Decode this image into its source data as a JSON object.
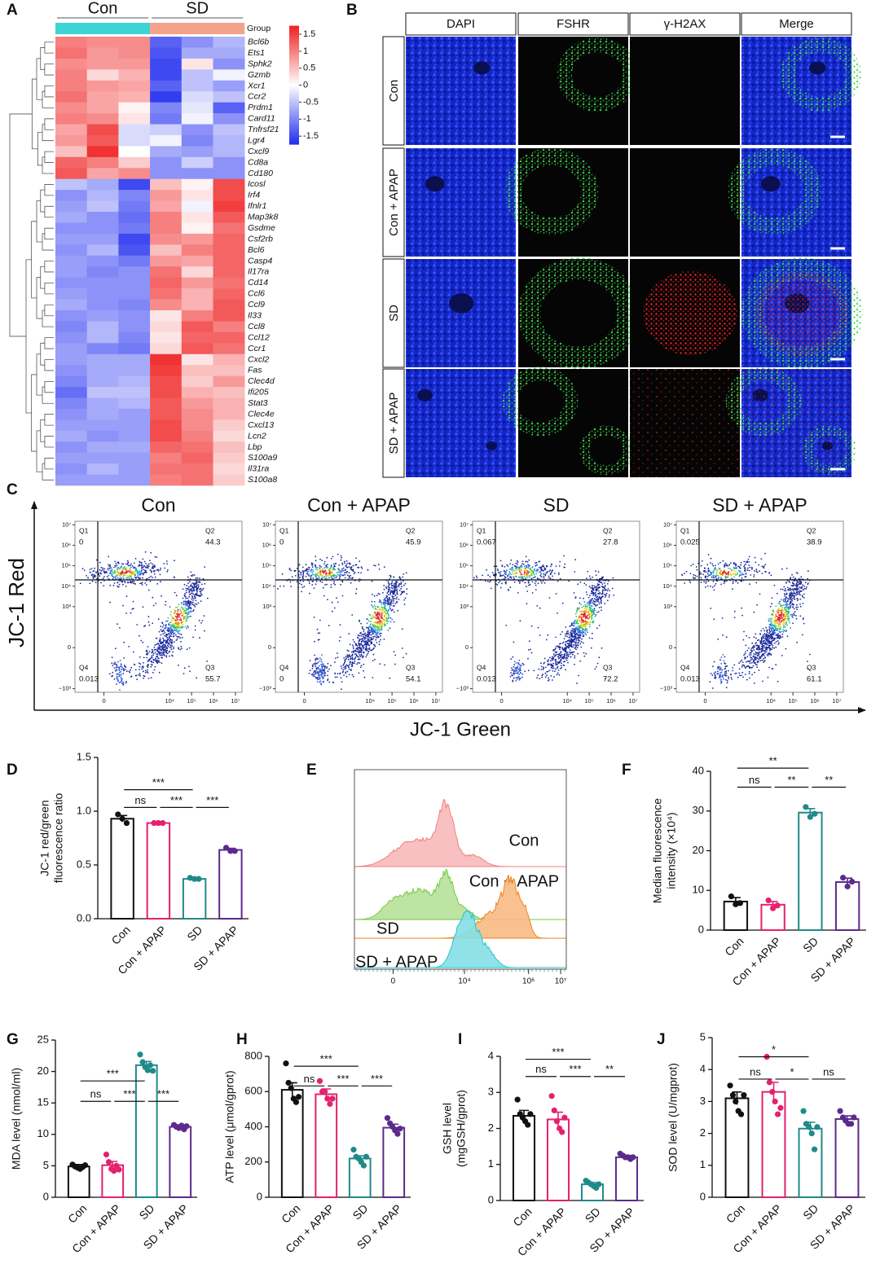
{
  "chart_data": [
    {
      "panel": "A",
      "type": "heatmap",
      "groups": [
        {
          "name": "Con",
          "color": "#3fd4d4"
        },
        {
          "name": "SD",
          "color": "#f4a28c"
        }
      ],
      "group_label": "Group",
      "rows": [
        "Bcl6b",
        "Ets1",
        "Sphk2",
        "Gzmb",
        "Xcr1",
        "Ccr2",
        "Prdm1",
        "Card11",
        "Tnfrsf21",
        "Lgr4",
        "Cxcl9",
        "Cd8a",
        "Cd180",
        "Icosl",
        "Irf4",
        "Ifnlr1",
        "Map3k8",
        "Gsdme",
        "Csf2rb",
        "Bcl6",
        "Casp4",
        "Il17ra",
        "Cd14",
        "Ccl6",
        "Ccl9",
        "Il33",
        "Ccl8",
        "Ccl12",
        "Ccr1",
        "Cxcl2",
        "Fas",
        "Clec4d",
        "Ifi205",
        "Stat3",
        "Clec4e",
        "Cxcl13",
        "Lcn2",
        "Lbp",
        "S100a9",
        "Il31ra",
        "S100a8"
      ],
      "values": [
        [
          1.0,
          0.9,
          0.9,
          -1.3,
          -0.9,
          -0.6
        ],
        [
          1.1,
          0.8,
          0.9,
          -1.4,
          -0.7,
          -0.7
        ],
        [
          0.9,
          0.8,
          0.8,
          -1.5,
          0.2,
          -0.9
        ],
        [
          1.0,
          0.3,
          0.6,
          -1.5,
          -0.5,
          -0.1
        ],
        [
          1.0,
          0.8,
          0.7,
          -1.3,
          -0.5,
          -0.8
        ],
        [
          1.1,
          0.7,
          0.6,
          -1.6,
          -0.3,
          -0.5
        ],
        [
          0.9,
          0.7,
          0.1,
          -1.0,
          -0.2,
          -1.3
        ],
        [
          1.0,
          0.9,
          0.2,
          -1.1,
          -0.1,
          -0.9
        ],
        [
          0.7,
          1.4,
          -0.3,
          -0.4,
          -0.9,
          -0.5
        ],
        [
          0.8,
          1.3,
          -0.3,
          -0.1,
          -1.0,
          -0.6
        ],
        [
          0.5,
          1.6,
          0.0,
          -0.7,
          -0.8,
          -0.6
        ],
        [
          1.2,
          1.0,
          0.4,
          -0.9,
          -0.4,
          -0.9
        ],
        [
          1.3,
          0.7,
          0.9,
          -0.9,
          -0.9,
          -0.9
        ],
        [
          -0.5,
          -0.7,
          -1.5,
          0.5,
          0.1,
          1.4
        ],
        [
          -0.9,
          -0.6,
          -1.0,
          0.8,
          0.2,
          1.4
        ],
        [
          -0.8,
          -0.5,
          -1.1,
          0.7,
          -0.1,
          1.5
        ],
        [
          -0.7,
          -0.9,
          -1.2,
          1.0,
          0.2,
          1.3
        ],
        [
          -0.9,
          -0.9,
          -1.1,
          1.0,
          0.1,
          1.1
        ],
        [
          -0.8,
          -0.8,
          -1.5,
          0.9,
          0.8,
          1.2
        ],
        [
          -0.9,
          -0.6,
          -1.4,
          0.5,
          1.0,
          1.2
        ],
        [
          -0.8,
          -0.9,
          -1.1,
          0.8,
          0.7,
          1.2
        ],
        [
          -0.8,
          -1.0,
          -0.9,
          1.1,
          0.3,
          1.2
        ],
        [
          -0.9,
          -0.9,
          -0.9,
          1.2,
          0.8,
          1.1
        ],
        [
          -0.8,
          -0.9,
          -0.9,
          1.1,
          0.6,
          1.2
        ],
        [
          -0.7,
          -0.9,
          -1.0,
          0.9,
          0.6,
          1.3
        ],
        [
          -0.9,
          -0.8,
          -0.9,
          0.2,
          1.0,
          1.3
        ],
        [
          -1.0,
          -0.6,
          -0.9,
          0.3,
          1.3,
          1.0
        ],
        [
          -0.9,
          -0.6,
          -1.0,
          0.2,
          1.2,
          1.2
        ],
        [
          -0.8,
          -1.0,
          -1.1,
          0.3,
          1.3,
          1.1
        ],
        [
          -0.8,
          -0.7,
          -0.7,
          1.6,
          0.2,
          0.6
        ],
        [
          -0.9,
          -0.7,
          -0.7,
          1.5,
          0.5,
          0.5
        ],
        [
          -1.0,
          -0.7,
          -0.6,
          1.4,
          0.4,
          0.8
        ],
        [
          -1.2,
          -0.5,
          -0.5,
          1.4,
          0.6,
          0.5
        ],
        [
          -1.0,
          -0.7,
          -0.6,
          1.3,
          0.8,
          0.6
        ],
        [
          -0.9,
          -0.7,
          -0.8,
          1.3,
          0.9,
          0.6
        ],
        [
          -0.8,
          -0.8,
          -0.8,
          1.4,
          0.9,
          0.4
        ],
        [
          -0.7,
          -0.9,
          -0.8,
          1.4,
          1.0,
          0.3
        ],
        [
          -0.9,
          -0.7,
          -0.7,
          1.2,
          1.1,
          0.5
        ],
        [
          -0.8,
          -0.8,
          -0.8,
          1.0,
          1.2,
          0.4
        ],
        [
          -0.9,
          -0.6,
          -0.8,
          1.1,
          1.1,
          0.3
        ],
        [
          -0.8,
          -0.8,
          -0.8,
          1.0,
          1.1,
          0.4
        ]
      ],
      "clim": [
        -1.75,
        1.75
      ],
      "colorbar_ticks": [
        1.5,
        1,
        0.5,
        0,
        -0.5,
        -1,
        -1.5
      ],
      "colors": [
        "#1f2bef",
        "#ffffff",
        "#ef1f1f"
      ]
    },
    {
      "panel": "C",
      "type": "flow",
      "y_label": "JC-1 Red",
      "x_label": "JC-1 Green",
      "quadrant_names": [
        "Q1",
        "Q2",
        "Q3",
        "Q4"
      ],
      "plots": [
        {
          "title": "Con",
          "values": [
            0,
            44.3,
            55.7,
            0.013
          ]
        },
        {
          "title": "Con + APAP",
          "values": [
            0,
            45.9,
            54.1,
            0
          ]
        },
        {
          "title": "SD",
          "values": [
            0.067,
            27.8,
            72.2,
            0.013
          ]
        },
        {
          "title": "SD + APAP",
          "values": [
            0.025,
            38.9,
            61.1,
            0.013
          ]
        }
      ],
      "xlim": [
        -200,
        20000000
      ],
      "ylim": [
        -1500,
        15000000
      ],
      "xticks": [
        0,
        {
          "value": 10000,
          "label": "10⁴"
        },
        {
          "value": 100000,
          "label": "10⁵"
        },
        {
          "value": 1000000,
          "label": "10⁶"
        },
        {
          "value": 10000000,
          "label": "10⁷"
        }
      ],
      "yticks": [
        {
          "value": 10000000,
          "label": "10⁷"
        },
        {
          "value": 1000000,
          "label": "10⁶"
        },
        {
          "value": 100000,
          "label": "10⁵"
        },
        {
          "value": 10000,
          "label": "10⁴"
        },
        {
          "value": 1000,
          "label": "10³"
        },
        0,
        {
          "value": -1000,
          "label": "−10³"
        }
      ]
    },
    {
      "panel": "D",
      "type": "bar",
      "y_label": [
        "JC-1 red/green",
        "fluorescence ratio"
      ],
      "categories": [
        "Con",
        "Con + APAP",
        "SD",
        "SD + APAP"
      ],
      "colors": [
        "#111111",
        "#e5206e",
        "#1f8a8a",
        "#5b2a8c"
      ],
      "values": [
        0.93,
        0.89,
        0.37,
        0.64
      ],
      "errors": [
        0.03,
        0.005,
        0.01,
        0.015
      ],
      "points": [
        [
          0.97,
          0.93,
          0.89
        ],
        [
          0.89,
          0.89,
          0.89
        ],
        [
          0.38,
          0.37,
          0.37
        ],
        [
          0.66,
          0.63,
          0.63
        ]
      ],
      "ylim": [
        0,
        1.5
      ],
      "yticks": [
        {
          "value": 0,
          "label": "0.0"
        },
        0.5,
        {
          "value": 1,
          "label": "1.0"
        },
        1.5
      ],
      "brackets": [
        {
          "pair": [
            0,
            1
          ],
          "label": "ns"
        },
        {
          "pair": [
            0,
            2
          ],
          "label": "***"
        },
        {
          "pair": [
            1,
            2
          ],
          "label": "***"
        },
        {
          "pair": [
            2,
            3
          ],
          "label": "***"
        }
      ]
    },
    {
      "panel": "E",
      "type": "histogram_overlay",
      "series": [
        {
          "name": "Con",
          "color": "#f08080"
        },
        {
          "name": "Con + APAP",
          "color": "#7ac943"
        },
        {
          "name": "SD",
          "color": "#f0821e"
        },
        {
          "name": "SD + APAP",
          "color": "#21c4cf"
        }
      ],
      "xlim": [
        -900,
        15000000
      ],
      "xticks": [
        0,
        {
          "value": 10000,
          "label": "10⁴"
        },
        {
          "value": 1000000,
          "label": "10⁶"
        },
        {
          "value": 10000000,
          "label": "10⁷"
        }
      ]
    },
    {
      "panel": "F",
      "type": "bar",
      "y_label": [
        "Median fluorescence",
        "intensity (×10⁴)"
      ],
      "categories": [
        "Con",
        "Con + APAP",
        "SD",
        "SD + APAP"
      ],
      "colors": [
        "#111111",
        "#e5206e",
        "#1f8a8a",
        "#5b2a8c"
      ],
      "values": [
        7.2,
        6.4,
        29.6,
        12.1
      ],
      "errors": [
        1,
        0.8,
        1,
        1
      ],
      "points": [
        [
          8.5,
          6.5,
          6.8
        ],
        [
          7.5,
          5.5,
          6.2
        ],
        [
          31,
          28.5,
          29.3
        ],
        [
          13.2,
          11,
          12.2
        ]
      ],
      "ylim": [
        0,
        40
      ],
      "yticks": [
        0,
        10,
        20,
        30,
        40
      ],
      "brackets": [
        {
          "pair": [
            0,
            1
          ],
          "label": "ns"
        },
        {
          "pair": [
            0,
            2
          ],
          "label": "**"
        },
        {
          "pair": [
            1,
            2
          ],
          "label": "**"
        },
        {
          "pair": [
            2,
            3
          ],
          "label": "**"
        }
      ]
    },
    {
      "panel": "G",
      "type": "bar",
      "y_label": "MDA level (nmol/ml)",
      "categories": [
        "Con",
        "Con + APAP",
        "SD",
        "SD + APAP"
      ],
      "colors": [
        "#111111",
        "#e5206e",
        "#1f8a8a",
        "#5b2a8c"
      ],
      "values": [
        4.9,
        5.1,
        21,
        11.2
      ],
      "errors": [
        0.3,
        0.6,
        0.6,
        0.3
      ],
      "points": [
        [
          5.2,
          4.9,
          4.7,
          4.5,
          4.8,
          5.1
        ],
        [
          6.8,
          5.6,
          4.5,
          4.2,
          5.0,
          4.4
        ],
        [
          22.7,
          21.5,
          20.7,
          20.2,
          21.0,
          20.1
        ],
        [
          11.5,
          11.2,
          11.0,
          11.4,
          10.8,
          11.3
        ]
      ],
      "ylim": [
        0,
        25
      ],
      "yticks": [
        0,
        5,
        10,
        15,
        20,
        25
      ],
      "brackets": [
        {
          "pair": [
            0,
            1
          ],
          "label": "ns"
        },
        {
          "pair": [
            0,
            2
          ],
          "label": "***"
        },
        {
          "pair": [
            1,
            2
          ],
          "label": "***"
        },
        {
          "pair": [
            2,
            3
          ],
          "label": "***"
        }
      ]
    },
    {
      "panel": "H",
      "type": "bar",
      "y_label": "ATP level (μmol/gprot)",
      "categories": [
        "Con",
        "Con + APAP",
        "SD",
        "SD + APAP"
      ],
      "colors": [
        "#111111",
        "#e5206e",
        "#1f8a8a",
        "#5b2a8c"
      ],
      "values": [
        610,
        585,
        220,
        395
      ],
      "errors": [
        40,
        30,
        15,
        20
      ],
      "points": [
        [
          760,
          650,
          620,
          560,
          540,
          570
        ],
        [
          660,
          600,
          600,
          560,
          530,
          560
        ],
        [
          270,
          230,
          220,
          200,
          180,
          230
        ],
        [
          450,
          420,
          400,
          380,
          360,
          390
        ]
      ],
      "ylim": [
        0,
        800
      ],
      "yticks": [
        0,
        200,
        400,
        600,
        800
      ],
      "brackets": [
        {
          "pair": [
            0,
            1
          ],
          "label": "ns"
        },
        {
          "pair": [
            0,
            2
          ],
          "label": "***"
        },
        {
          "pair": [
            1,
            2
          ],
          "label": "***"
        },
        {
          "pair": [
            2,
            3
          ],
          "label": "***"
        }
      ]
    },
    {
      "panel": "I",
      "type": "bar",
      "y_label": [
        "GSH level",
        "(mgGSH/gprot)"
      ],
      "categories": [
        "Con",
        "Con + APAP",
        "SD",
        "SD + APAP"
      ],
      "colors": [
        "#111111",
        "#e5206e",
        "#1f8a8a",
        "#5b2a8c"
      ],
      "values": [
        2.35,
        2.25,
        0.45,
        1.2
      ],
      "errors": [
        0.15,
        0.2,
        0.05,
        0.05
      ],
      "points": [
        [
          2.8,
          2.4,
          2.3,
          2.2,
          2.1,
          2.4
        ],
        [
          2.9,
          2.5,
          2.2,
          2.0,
          1.9,
          2.3
        ],
        [
          0.55,
          0.5,
          0.45,
          0.4,
          0.35,
          0.45
        ],
        [
          1.3,
          1.25,
          1.2,
          1.2,
          1.15,
          1.2
        ]
      ],
      "ylim": [
        0,
        4
      ],
      "yticks": [
        0,
        1,
        2,
        3,
        4
      ],
      "brackets": [
        {
          "pair": [
            0,
            1
          ],
          "label": "ns"
        },
        {
          "pair": [
            0,
            2
          ],
          "label": "***"
        },
        {
          "pair": [
            1,
            2
          ],
          "label": "***"
        },
        {
          "pair": [
            2,
            3
          ],
          "label": "**"
        }
      ]
    },
    {
      "panel": "J",
      "type": "bar",
      "y_label": "SOD level (U/mgprot)",
      "categories": [
        "Con",
        "Con + APAP",
        "SD",
        "SD + APAP"
      ],
      "colors": [
        "#111111",
        "#e5206e",
        "#1f8a8a",
        "#5b2a8c"
      ],
      "values": [
        3.1,
        3.3,
        2.15,
        2.45
      ],
      "errors": [
        0.2,
        0.3,
        0.2,
        0.1
      ],
      "points": [
        [
          3.5,
          3.2,
          3.0,
          2.7,
          2.6,
          3.2
        ],
        [
          4.4,
          3.6,
          3.3,
          3.0,
          2.6,
          2.8
        ],
        [
          2.7,
          2.3,
          2.2,
          2.0,
          1.5,
          2.2
        ],
        [
          2.7,
          2.5,
          2.4,
          2.3,
          2.3,
          2.5
        ]
      ],
      "ylim": [
        0,
        5
      ],
      "yticks": [
        0,
        1,
        2,
        3,
        4,
        5
      ],
      "brackets": [
        {
          "pair": [
            0,
            1
          ],
          "label": "ns"
        },
        {
          "pair": [
            0,
            2
          ],
          "label": "*"
        },
        {
          "pair": [
            1,
            2
          ],
          "label": "*"
        },
        {
          "pair": [
            2,
            3
          ],
          "label": "ns"
        }
      ]
    }
  ],
  "microscopy": {
    "panel": "B",
    "columns": [
      "DAPI",
      "FSHR",
      "γ-H2AX",
      "Merge"
    ],
    "rows": [
      "Con",
      "Con + APAP",
      "SD",
      "SD + APAP"
    ]
  }
}
